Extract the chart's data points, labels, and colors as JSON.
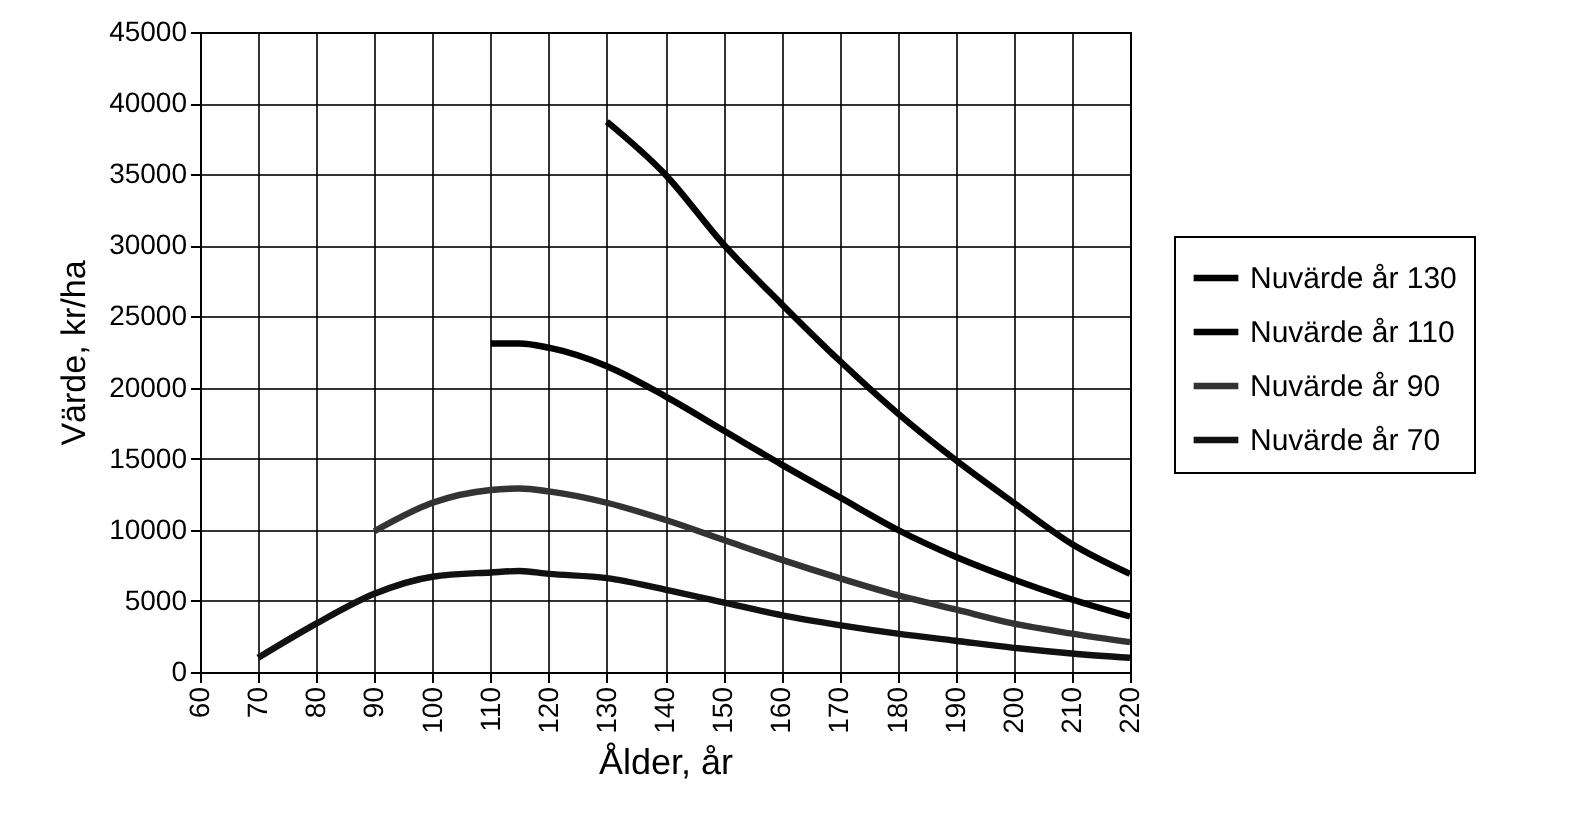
{
  "chart_data": {
    "type": "line",
    "xlabel": "Ålder, år",
    "ylabel": "Värde, kr/ha",
    "xlim": [
      60,
      220
    ],
    "xticks": [
      60,
      70,
      80,
      90,
      100,
      110,
      120,
      130,
      140,
      150,
      160,
      170,
      180,
      190,
      200,
      210,
      220
    ],
    "ylim": [
      0,
      45000
    ],
    "yticks": [
      0,
      5000,
      10000,
      15000,
      20000,
      25000,
      30000,
      35000,
      40000,
      45000
    ],
    "grid": true,
    "legend": "right",
    "marker": "none",
    "line_style": "solid",
    "series": [
      {
        "name": "Nuvärde år 130",
        "color": "#000000",
        "x": [
          130,
          140,
          150,
          160,
          170,
          180,
          190,
          200,
          210,
          220
        ],
        "values": [
          38700,
          35000,
          30100,
          25900,
          21900,
          18200,
          14900,
          11900,
          9000,
          6900
        ]
      },
      {
        "name": "Nuvärde år 110",
        "color": "#000000",
        "x": [
          110,
          115,
          120,
          130,
          140,
          150,
          160,
          170,
          180,
          190,
          200,
          210,
          220
        ],
        "values": [
          23100,
          23100,
          22800,
          21500,
          19400,
          17000,
          14600,
          12300,
          10000,
          8100,
          6500,
          5100,
          3900
        ]
      },
      {
        "name": "Nuvärde år 90",
        "color": "#333333",
        "x": [
          90,
          100,
          110,
          115,
          120,
          130,
          140,
          150,
          160,
          170,
          180,
          190,
          200,
          210,
          220
        ],
        "values": [
          9900,
          11900,
          12800,
          12900,
          12700,
          11900,
          10700,
          9300,
          7900,
          6600,
          5400,
          4400,
          3400,
          2700,
          2100
        ]
      },
      {
        "name": "Nuvärde år 70",
        "color": "#111111",
        "x": [
          70,
          80,
          90,
          100,
          110,
          115,
          120,
          130,
          140,
          150,
          160,
          170,
          180,
          190,
          200,
          210,
          220
        ],
        "values": [
          1000,
          3400,
          5500,
          6700,
          7000,
          7100,
          6900,
          6600,
          5800,
          4900,
          4000,
          3300,
          2700,
          2200,
          1700,
          1300,
          1000
        ]
      }
    ]
  }
}
